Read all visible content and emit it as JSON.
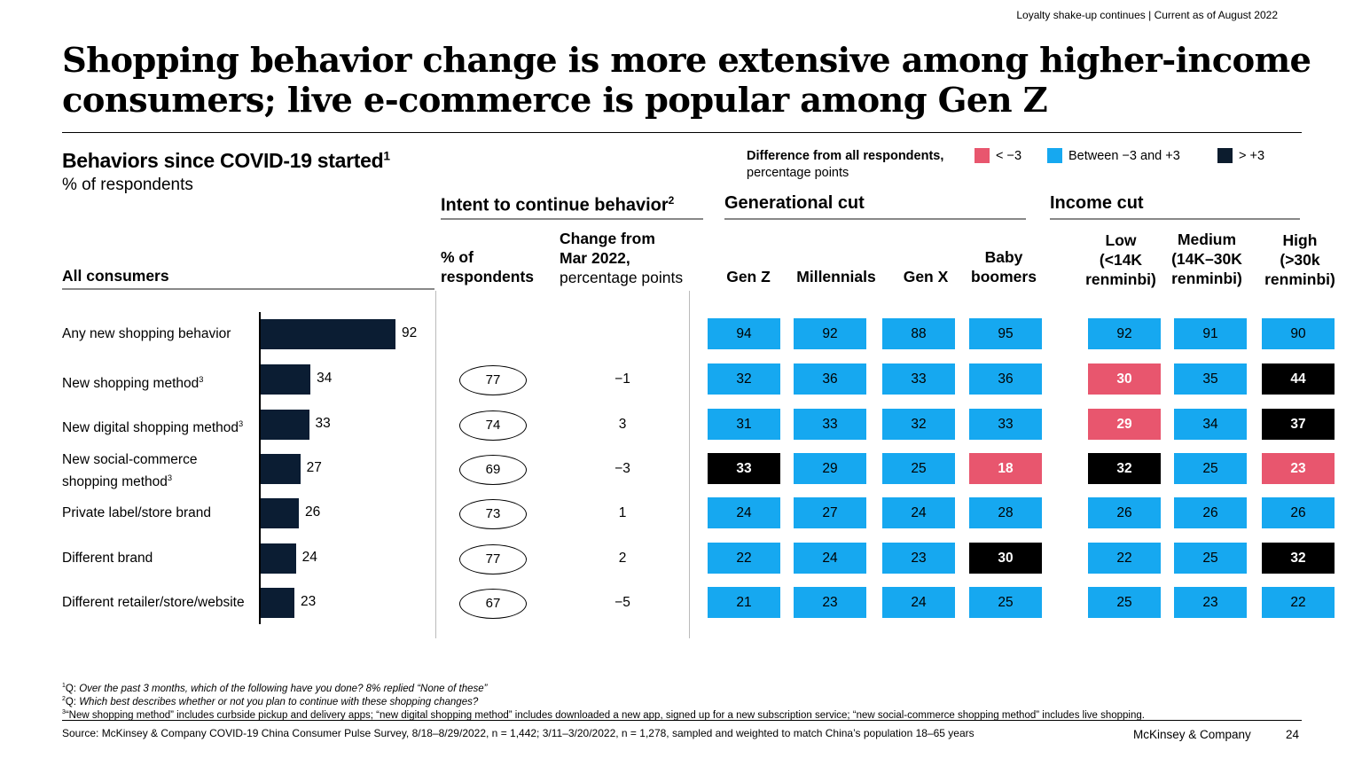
{
  "header": {
    "topline": "Loyalty shake-up continues | Current as of August 2022",
    "title": "Shopping behavior change is more extensive among higher-income consumers; live e-commerce is popular among Gen Z"
  },
  "chart_header": {
    "main": "Behaviors since COVID-19 started",
    "main_sup": "1",
    "sub": "% of respondents"
  },
  "legend": {
    "label_bold": "Difference from all respondents,",
    "label_rest": "percentage points",
    "items": [
      {
        "label": "< −3",
        "color": "#e8566e"
      },
      {
        "label": "Between −3 and +3",
        "color": "#16a8f0"
      },
      {
        "label": "> +3",
        "color": "#0c1c2e"
      }
    ]
  },
  "sections": {
    "intent": "Intent to continue behavior",
    "intent_sup": "2",
    "generational": "Generational cut",
    "income": "Income cut"
  },
  "columns": {
    "all_consumers": "All consumers",
    "pct_line1": "% of",
    "pct_line2": "respondents",
    "change_bold1": "Change from",
    "change_bold2": "Mar 2022,",
    "change_rest": "percentage points",
    "generations": [
      "Gen Z",
      "Millennials",
      "Gen X",
      "Baby boomers"
    ],
    "incomes": [
      {
        "l1": "Low",
        "l2": "(<14K",
        "l3": "renminbi)"
      },
      {
        "l1": "Medium",
        "l2": "(14K–30K",
        "l3": "renminbi)"
      },
      {
        "l1": "High",
        "l2": "(>30k",
        "l3": "renminbi)"
      }
    ]
  },
  "colors": {
    "low": "#e8566e",
    "mid": "#16a8f0",
    "high": "#0c1c2e",
    "bar": "#0b1d33"
  },
  "chart_data": {
    "type": "bar",
    "orientation": "horizontal",
    "title": "Behaviors since COVID-19 started",
    "unit": "% of respondents",
    "categories": [
      "Any new shopping behavior",
      "New shopping method",
      "New digital shopping method",
      "New social-commerce shopping method",
      "Private label/store brand",
      "Different brand",
      "Different retailer/store/website"
    ],
    "label_sups": [
      "",
      "3",
      "3",
      "3",
      "",
      "",
      ""
    ],
    "values": [
      92,
      34,
      33,
      27,
      26,
      24,
      23
    ],
    "xlim": [
      0,
      100
    ],
    "intent_pct": [
      null,
      77,
      74,
      69,
      73,
      77,
      67
    ],
    "intent_change": [
      null,
      "−1",
      "3",
      "−3",
      "1",
      "2",
      "−5"
    ],
    "generational": {
      "series": [
        "Gen Z",
        "Millennials",
        "Gen X",
        "Baby boomers"
      ],
      "values": [
        [
          94,
          92,
          88,
          95
        ],
        [
          32,
          36,
          33,
          36
        ],
        [
          31,
          33,
          32,
          33
        ],
        [
          33,
          29,
          25,
          18
        ],
        [
          24,
          27,
          24,
          28
        ],
        [
          22,
          24,
          23,
          30
        ],
        [
          21,
          23,
          24,
          25
        ]
      ],
      "status": [
        [
          "mid",
          "mid",
          "mid",
          "mid"
        ],
        [
          "mid",
          "mid",
          "mid",
          "mid"
        ],
        [
          "mid",
          "mid",
          "mid",
          "mid"
        ],
        [
          "high",
          "mid",
          "mid",
          "low"
        ],
        [
          "mid",
          "mid",
          "mid",
          "mid"
        ],
        [
          "mid",
          "mid",
          "mid",
          "high"
        ],
        [
          "mid",
          "mid",
          "mid",
          "mid"
        ]
      ]
    },
    "income": {
      "series": [
        "Low (<14K renminbi)",
        "Medium (14K–30K renminbi)",
        "High (>30k renminbi)"
      ],
      "values": [
        [
          92,
          91,
          90
        ],
        [
          30,
          35,
          44
        ],
        [
          29,
          34,
          37
        ],
        [
          32,
          25,
          23
        ],
        [
          26,
          26,
          26
        ],
        [
          22,
          25,
          32
        ],
        [
          25,
          23,
          22
        ]
      ],
      "status": [
        [
          "mid",
          "mid",
          "mid"
        ],
        [
          "low",
          "mid",
          "high"
        ],
        [
          "low",
          "mid",
          "high"
        ],
        [
          "high",
          "mid",
          "low"
        ],
        [
          "mid",
          "mid",
          "mid"
        ],
        [
          "mid",
          "mid",
          "high"
        ],
        [
          "mid",
          "mid",
          "mid"
        ]
      ]
    }
  },
  "footnotes": {
    "f1_mark": "1",
    "f1_prefix": "Q: ",
    "f1_text": "Over the past 3 months, which of the following have you done? 8% replied “None of these”",
    "f2_mark": "2",
    "f2_prefix": "Q: ",
    "f2_text": "Which best describes whether or not you plan to continue with these shopping changes?",
    "f3_mark": "3",
    "f3_text": "“New shopping method” includes curbside pickup and delivery apps; “new digital shopping method” includes downloaded a new app, signed up for a new subscription service; “new social-commerce shopping method” includes live shopping.",
    "source": "Source: McKinsey & Company COVID-19 China Consumer Pulse Survey, 8/18–8/29/2022, n = 1,442; 3/11–3/20/2022, n = 1,278, sampled and weighted to match China’s population 18–65 years",
    "brand": "McKinsey & Company",
    "page": "24"
  }
}
